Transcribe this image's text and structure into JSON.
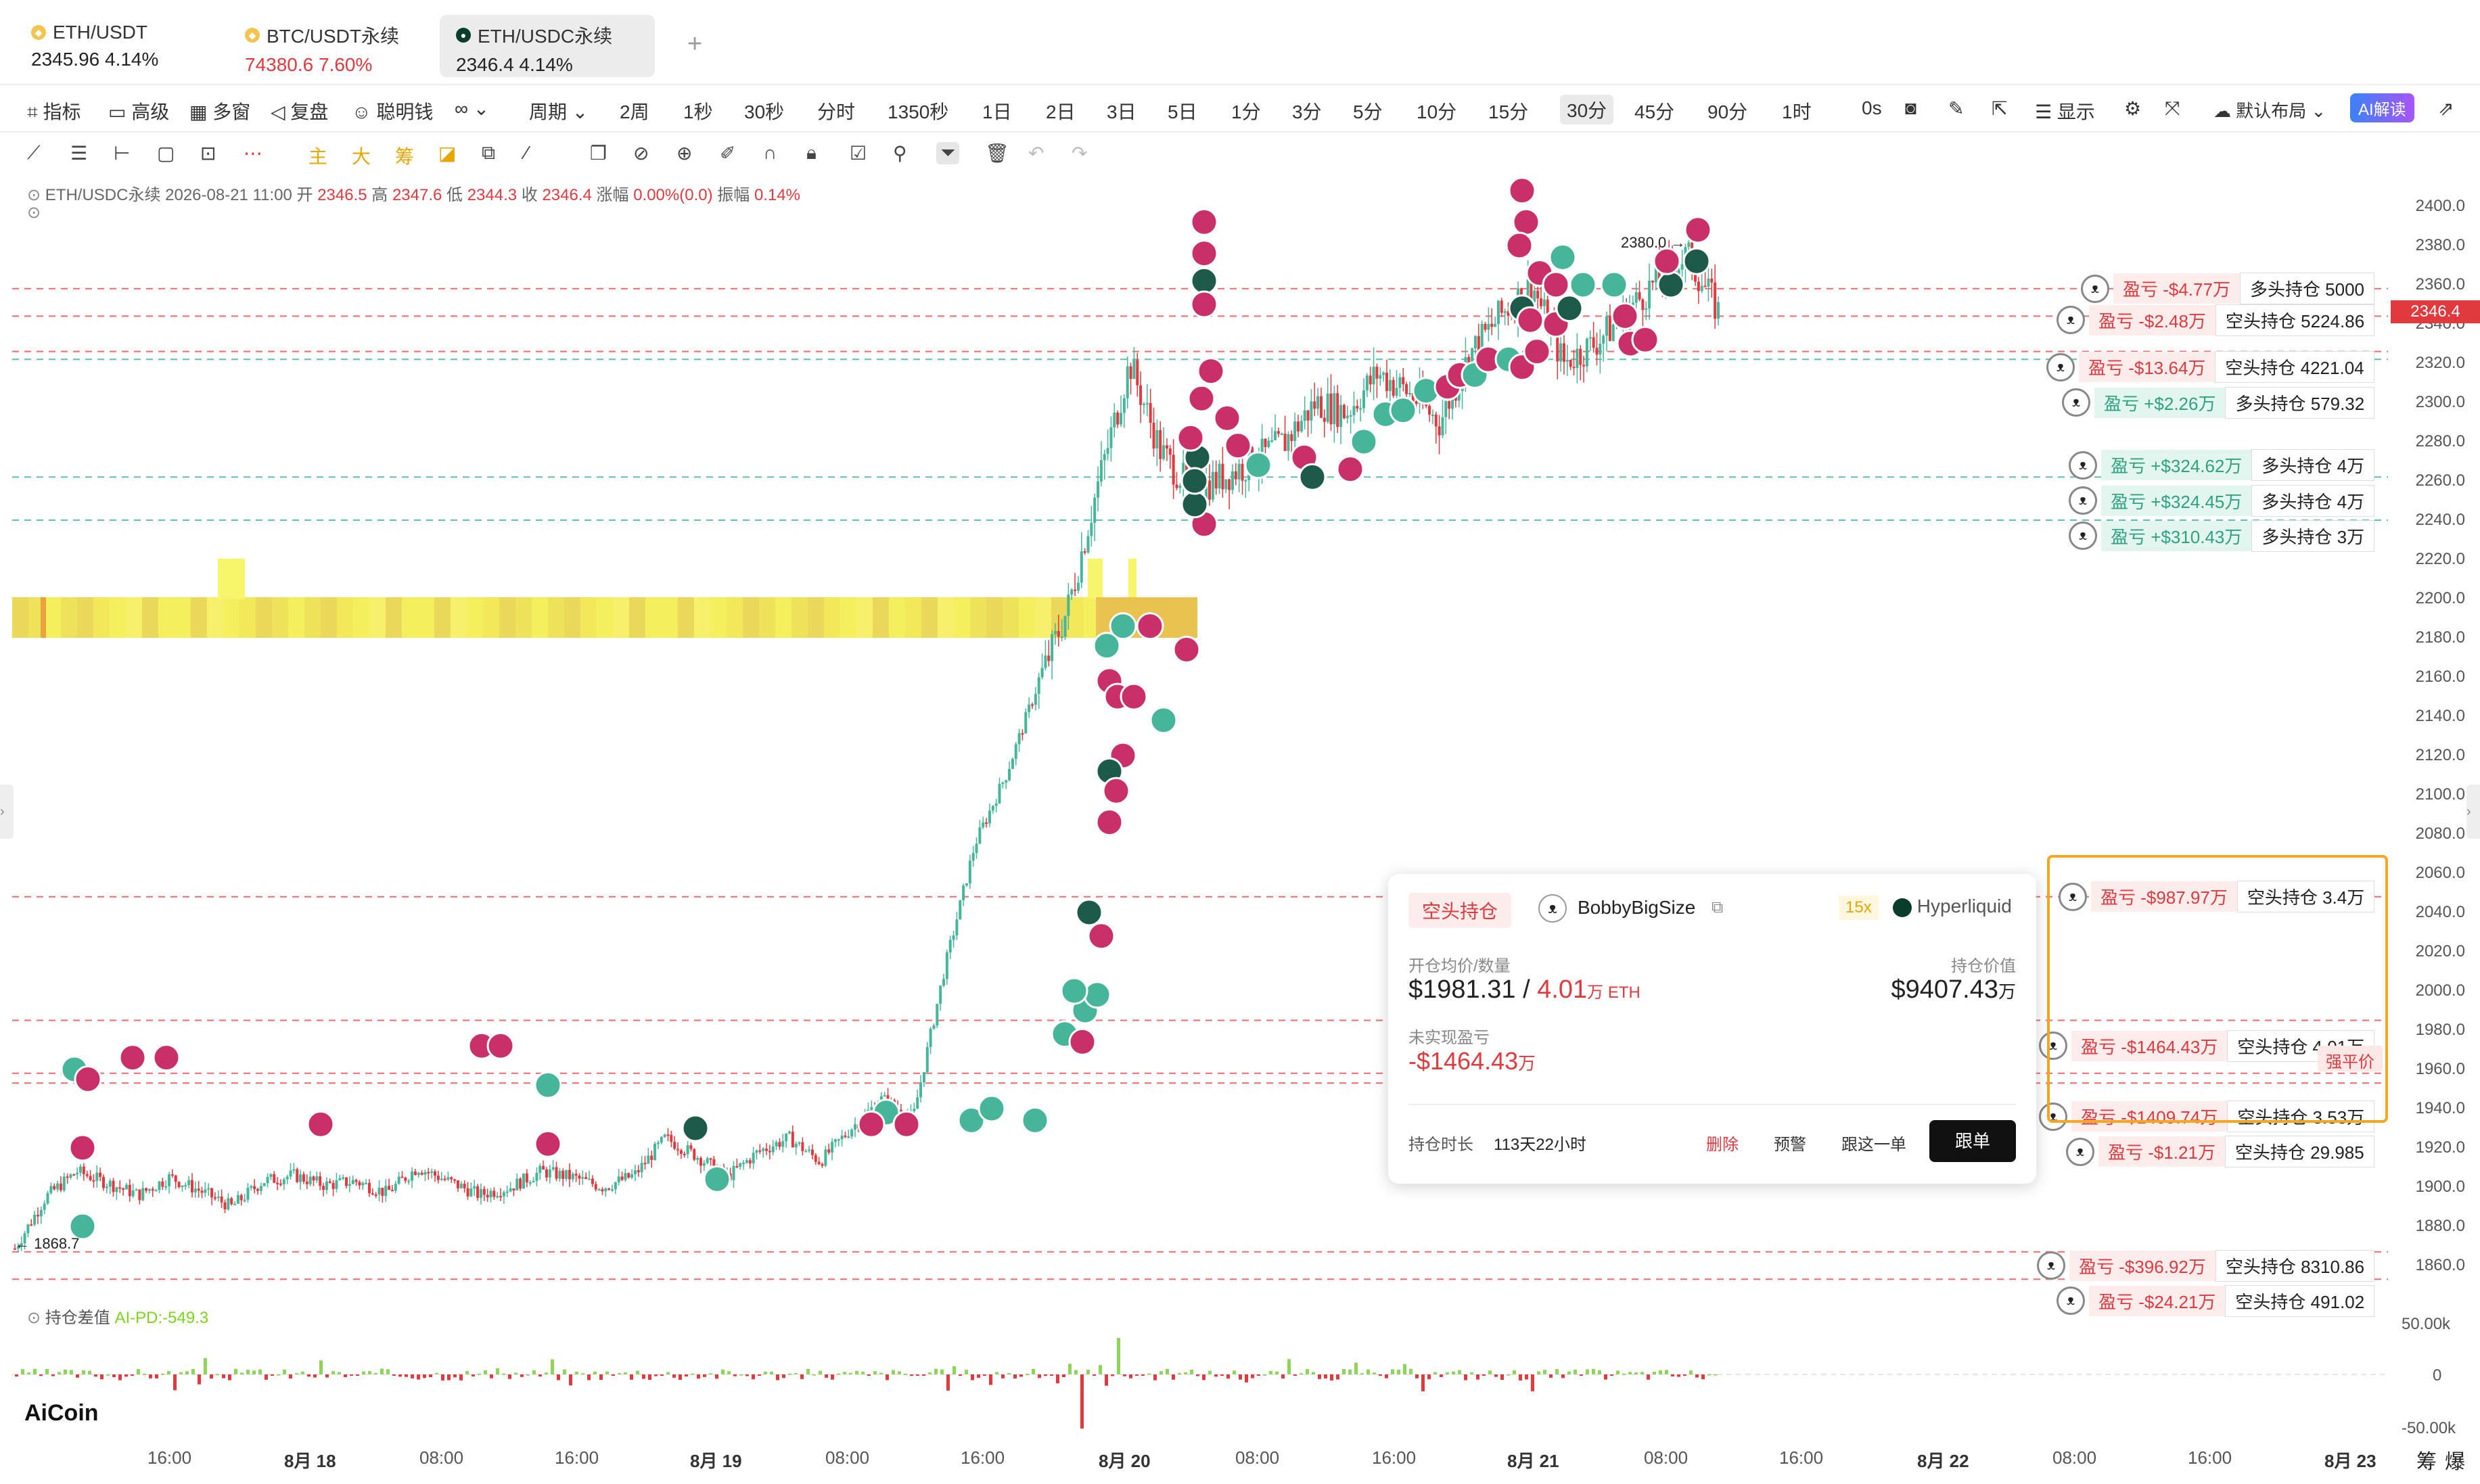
{
  "tabs": [
    {
      "name": "ETH/USDT",
      "price": "2345.96",
      "change": "4.14%",
      "up": true
    },
    {
      "name": "BTC/USDT永续",
      "price": "74380.6",
      "change": "7.60%",
      "up": false
    },
    {
      "name": "ETH/USDC永续",
      "price": "2346.4",
      "change": "4.14%",
      "up": true
    }
  ],
  "add_tab": "+",
  "toolbar": {
    "left": [
      "指标",
      "高级",
      "多窗",
      "复盘",
      "聪明钱"
    ],
    "period": "周期",
    "intervals": [
      "2周",
      "1秒",
      "30秒",
      "分时",
      "1350秒",
      "1日",
      "2日",
      "3日",
      "5日",
      "1分",
      "3分",
      "5分",
      "10分",
      "15分",
      "30分",
      "45分",
      "90分",
      "1时"
    ],
    "selected": "30分",
    "countdown": "0s",
    "display": "显示",
    "layout": "默认布局",
    "ai": "AI解读"
  },
  "ohlc": {
    "symbol": "ETH/USDC永续",
    "time": "2026-08-21 11:00",
    "open_label": "开",
    "open": "2346.5",
    "high_label": "高",
    "high": "2347.6",
    "low_label": "低",
    "low": "2344.3",
    "close_label": "收",
    "close": "2346.4",
    "chg_label": "涨幅",
    "chg": "0.00%(0.0)",
    "amp_label": "振幅",
    "amp": "0.14%"
  },
  "chart_data": {
    "type": "candlestick",
    "y_ticks": [
      "2400.0",
      "2380.0",
      "2360.0",
      "2340.0",
      "2320.0",
      "2300.0",
      "2280.0",
      "2260.0",
      "2240.0",
      "2220.0",
      "2200.0",
      "2180.0",
      "2160.0",
      "2140.0",
      "2120.0",
      "2100.0",
      "2080.0",
      "2060.0",
      "2040.0",
      "2020.0",
      "2000.0",
      "1980.0",
      "1960.0",
      "1940.0",
      "1920.0",
      "1900.0",
      "1880.0",
      "1860.0"
    ],
    "ylim": [
      1852,
      2410
    ],
    "current_price": "2346.4",
    "low_marker": "1868.7",
    "high_marker": "2380.0",
    "x_ticks": [
      {
        "label": "16:00",
        "bold": false
      },
      {
        "label": "8月 18",
        "bold": true
      },
      {
        "label": "08:00",
        "bold": false
      },
      {
        "label": "16:00",
        "bold": false
      },
      {
        "label": "8月 19",
        "bold": true
      },
      {
        "label": "08:00",
        "bold": false
      },
      {
        "label": "16:00",
        "bold": false
      },
      {
        "label": "8月 20",
        "bold": true
      },
      {
        "label": "08:00",
        "bold": false
      },
      {
        "label": "16:00",
        "bold": false
      },
      {
        "label": "8月 21",
        "bold": true
      },
      {
        "label": "08:00",
        "bold": false
      },
      {
        "label": "16:00",
        "bold": false
      },
      {
        "label": "8月 22",
        "bold": true
      },
      {
        "label": "08:00",
        "bold": false
      },
      {
        "label": "16:00",
        "bold": false
      },
      {
        "label": "8月 23",
        "bold": true
      }
    ],
    "price_path": [
      1868.7,
      1895,
      1908,
      1902,
      1896,
      1905,
      1898,
      1890,
      1903,
      1906,
      1901,
      1903,
      1897,
      1910,
      1903,
      1896,
      1900,
      1908,
      1905,
      1900,
      1906,
      1925,
      1916,
      1905,
      1918,
      1925,
      1913,
      1930,
      1945,
      1935,
      2010,
      2075,
      2110,
      2155,
      2195,
      2260,
      2320,
      2275,
      2255,
      2262,
      2270,
      2280,
      2300,
      2295,
      2315,
      2305,
      2290,
      2325,
      2345,
      2360,
      2320,
      2330,
      2345,
      2362,
      2375,
      2346.4
    ]
  },
  "lines": {
    "red": [
      2358,
      2344,
      2326,
      2048,
      1985,
      1958,
      1953,
      1867,
      1853
    ],
    "teal": [
      2322,
      2262,
      2240
    ]
  },
  "positions": [
    {
      "pnl": "盈亏 -$4.77万",
      "hold": "多头持仓 5000",
      "price": 2358,
      "profit": false
    },
    {
      "pnl": "盈亏 -$2.48万",
      "hold": "空头持仓 5224.86",
      "price": 2342,
      "profit": false
    },
    {
      "pnl": "盈亏 -$13.64万",
      "hold": "空头持仓 4221.04",
      "price": 2318,
      "profit": false
    },
    {
      "pnl": "盈亏 +$2.26万",
      "hold": "多头持仓 579.32",
      "price": 2300,
      "profit": true
    },
    {
      "pnl": "盈亏 +$324.62万",
      "hold": "多头持仓 4万",
      "price": 2268,
      "profit": true
    },
    {
      "pnl": "盈亏 +$324.45万",
      "hold": "多头持仓 4万",
      "price": 2250,
      "profit": true
    },
    {
      "pnl": "盈亏 +$310.43万",
      "hold": "多头持仓 3万",
      "price": 2232,
      "profit": true
    },
    {
      "pnl": "盈亏 -$987.97万",
      "hold": "空头持仓 3.4万",
      "price": 2048,
      "profit": false
    },
    {
      "pnl": "盈亏 -$1464.43万",
      "hold": "空头持仓 4.01万",
      "price": 1972,
      "profit": false
    },
    {
      "pnl": "盈亏 -$1409.74万",
      "hold": "空头持仓 3.53万",
      "price": 1936,
      "profit": false
    },
    {
      "pnl": "盈亏 -$1.21万",
      "hold": "空头持仓 29.985",
      "price": 1918,
      "profit": false
    },
    {
      "pnl": "盈亏 -$396.92万",
      "hold": "空头持仓 8310.86",
      "price": 1860,
      "profit": false
    },
    {
      "pnl": "盈亏 -$24.21万",
      "hold": "空头持仓 491.02",
      "price": 1842,
      "profit": false
    }
  ],
  "liq_label": "强平价",
  "popup": {
    "side": "空头持仓",
    "user": "BobbyBigSize",
    "leverage": "15x",
    "exchange": "Hyperliquid",
    "entry_label": "开仓均价/数量",
    "entry_price": "$1981.31",
    "sep": "/",
    "qty": "4.01",
    "qty_unit": "万 ETH",
    "value_label": "持仓价值",
    "value": "$9407.43",
    "value_unit": "万",
    "upnl_label": "未实现盈亏",
    "upnl": "-$1464.43",
    "upnl_unit": "万",
    "duration_label": "持仓时长",
    "duration": "113天22小时",
    "actions": [
      "删除",
      "预警",
      "跟这一单"
    ],
    "follow": "跟单"
  },
  "indicator": {
    "name": "持仓差值",
    "value": "AI-PD:-549.3",
    "ticks": [
      "50.00k",
      "0",
      "-50.00k"
    ]
  },
  "logo": "AiCoin",
  "corner": [
    "筹",
    "爆"
  ]
}
